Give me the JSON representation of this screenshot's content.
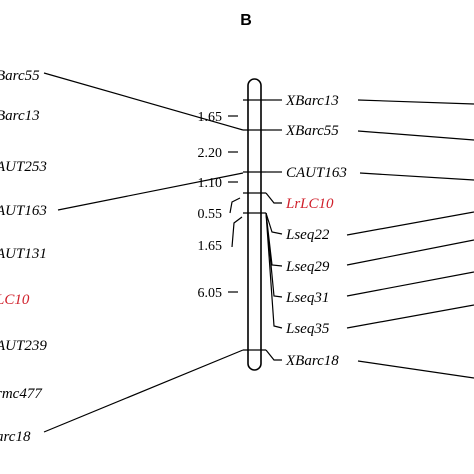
{
  "panel_label": "B",
  "highlight_color": "#d0202b",
  "left_labels": [
    {
      "text": "Barc55",
      "highlight": false
    },
    {
      "text": "Barc13",
      "highlight": false
    },
    {
      "text": "AUT253",
      "highlight": false
    },
    {
      "text": "AUT163",
      "highlight": false
    },
    {
      "text": "AUT131",
      "highlight": false
    },
    {
      "text": "LC10",
      "highlight": true
    },
    {
      "text": "AUT239",
      "highlight": false
    },
    {
      "text": "rmc477",
      "highlight": false
    },
    {
      "text": "arc18",
      "highlight": false
    }
  ],
  "map_markers": [
    {
      "text": "XBarc13",
      "highlight": false
    },
    {
      "text": "XBarc55",
      "highlight": false
    },
    {
      "text": "CAUT163",
      "highlight": false
    },
    {
      "text": "LrLC10",
      "highlight": true
    },
    {
      "text": "Lseq22",
      "highlight": false
    },
    {
      "text": "Lseq29",
      "highlight": false
    },
    {
      "text": "Lseq31",
      "highlight": false
    },
    {
      "text": "Lseq35",
      "highlight": false
    },
    {
      "text": "XBarc18",
      "highlight": false
    }
  ],
  "distances": [
    "1.65",
    "2.20",
    "1.10",
    "0.55",
    "1.65",
    "6.05"
  ]
}
